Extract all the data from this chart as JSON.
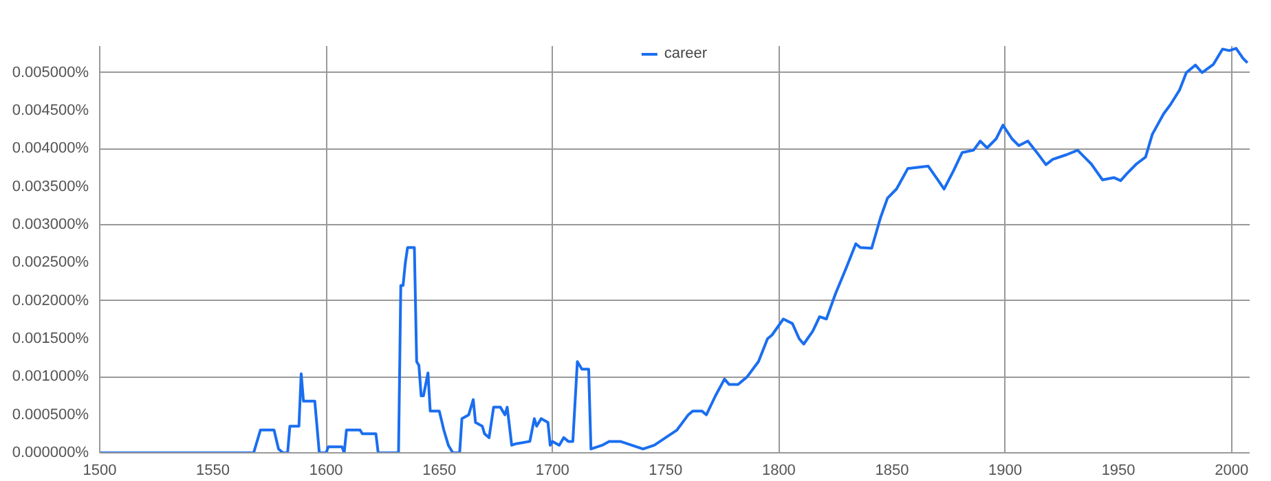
{
  "chart_data": {
    "type": "line",
    "legend": "top",
    "grid": true,
    "marker": "none",
    "line_style": "solid",
    "xlim": [
      1500,
      2008
    ],
    "ylim": [
      0,
      0.00535
    ],
    "xticks": [
      1500,
      1550,
      1600,
      1650,
      1700,
      1750,
      1800,
      1850,
      1900,
      1950,
      2000
    ],
    "yticks": [
      {
        "value": 0,
        "label": "0.000000%"
      },
      {
        "value": 0.0005,
        "label": "0.000500%"
      },
      {
        "value": 0.001,
        "label": "0.001000%"
      },
      {
        "value": 0.0015,
        "label": "0.001500%"
      },
      {
        "value": 0.002,
        "label": "0.002000%"
      },
      {
        "value": 0.0025,
        "label": "0.002500%"
      },
      {
        "value": 0.003,
        "label": "0.003000%"
      },
      {
        "value": 0.0035,
        "label": "0.003500%"
      },
      {
        "value": 0.004,
        "label": "0.004000%"
      },
      {
        "value": 0.0045,
        "label": "0.004500%"
      },
      {
        "value": 0.005,
        "label": "0.005000%"
      }
    ],
    "x": [
      1500,
      1568,
      1571,
      1577,
      1579,
      1581,
      1583,
      1584,
      1588,
      1589,
      1590,
      1595,
      1597,
      1600,
      1601,
      1607,
      1608,
      1609,
      1615,
      1616,
      1622,
      1623,
      1632,
      1633,
      1634,
      1635,
      1636,
      1639,
      1640,
      1641,
      1642,
      1643,
      1645,
      1646,
      1650,
      1652,
      1654,
      1656,
      1659,
      1660,
      1663,
      1665,
      1666,
      1669,
      1670,
      1672,
      1674,
      1677,
      1679,
      1680,
      1682,
      1684,
      1690,
      1692,
      1693,
      1695,
      1698,
      1699,
      1700,
      1703,
      1705,
      1707,
      1709,
      1711,
      1713,
      1716,
      1717,
      1722,
      1725,
      1730,
      1735,
      1740,
      1745,
      1750,
      1755,
      1760,
      1762,
      1766,
      1768,
      1772,
      1776,
      1778,
      1782,
      1786,
      1791,
      1795,
      1797,
      1802,
      1806,
      1809,
      1811,
      1815,
      1818,
      1821,
      1825,
      1830,
      1834,
      1836,
      1841,
      1845,
      1848,
      1852,
      1857,
      1866,
      1870,
      1873,
      1877,
      1881,
      1886,
      1889,
      1892,
      1896,
      1899,
      1903,
      1906,
      1910,
      1914,
      1918,
      1921,
      1927,
      1932,
      1935,
      1938,
      1943,
      1948,
      1951,
      1954,
      1958,
      1962,
      1965,
      1970,
      1973,
      1977,
      1980,
      1984,
      1987,
      1992,
      1996,
      1999,
      2002,
      2005,
      2007
    ],
    "series": [
      {
        "name": "career",
        "color": "#1a6ef0",
        "values": [
          0,
          0,
          0.0003,
          0.0003,
          5e-05,
          0,
          0,
          0.00035,
          0.00035,
          0.00104,
          0.00068,
          0.00068,
          0,
          0,
          8e-05,
          8e-05,
          0,
          0.0003,
          0.0003,
          0.00025,
          0.00025,
          0,
          0,
          0.0022,
          0.0022,
          0.0025,
          0.0027,
          0.0027,
          0.0012,
          0.00115,
          0.00075,
          0.00075,
          0.00105,
          0.00055,
          0.00055,
          0.0003,
          0.0001,
          0,
          0,
          0.00045,
          0.0005,
          0.0007,
          0.0004,
          0.00035,
          0.00025,
          0.0002,
          0.0006,
          0.0006,
          0.0005,
          0.0006,
          0.0001,
          0.00012,
          0.00015,
          0.00045,
          0.00035,
          0.00045,
          0.0004,
          0.0001,
          0.00015,
          0.0001,
          0.0002,
          0.00015,
          0.00015,
          0.0012,
          0.0011,
          0.0011,
          5e-05,
          0.0001,
          0.00015,
          0.00015,
          0.0001,
          5e-05,
          0.0001,
          0.0002,
          0.0003,
          0.0005,
          0.00055,
          0.00055,
          0.0005,
          0.00075,
          0.00097,
          0.0009,
          0.0009,
          0.001,
          0.0012,
          0.0015,
          0.00155,
          0.00176,
          0.0017,
          0.0015,
          0.00143,
          0.0016,
          0.00179,
          0.00176,
          0.00209,
          0.00245,
          0.00275,
          0.0027,
          0.00269,
          0.0031,
          0.00335,
          0.00347,
          0.00374,
          0.00377,
          0.0036,
          0.00347,
          0.0037,
          0.00395,
          0.00398,
          0.0041,
          0.00401,
          0.00413,
          0.00431,
          0.00413,
          0.00404,
          0.0041,
          0.00395,
          0.00379,
          0.00386,
          0.00392,
          0.00398,
          0.00389,
          0.0038,
          0.00359,
          0.00362,
          0.00358,
          0.00368,
          0.0038,
          0.00389,
          0.00419,
          0.00446,
          0.00458,
          0.00477,
          0.005,
          0.0051,
          0.005,
          0.00511,
          0.00531,
          0.00529,
          0.00532,
          0.00519,
          0.00513
        ]
      }
    ]
  }
}
